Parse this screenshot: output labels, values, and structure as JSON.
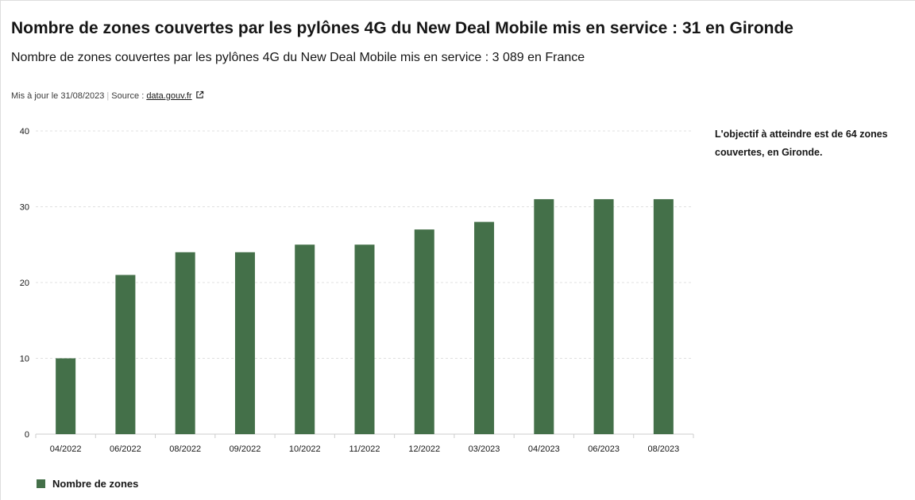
{
  "header": {
    "title": "Nombre de zones couvertes par les pylônes 4G du New Deal Mobile mis en service : 31 en Gironde",
    "subtitle": "Nombre de zones couvertes par les pylônes 4G du New Deal Mobile mis en service : 3 089 en France"
  },
  "meta": {
    "updated": "Mis à jour le 31/08/2023",
    "source_label": "Source :",
    "source_link": "data.gouv.fr"
  },
  "note": "L'objectif à atteindre est de 64 zones couvertes, en Gironde.",
  "colors": {
    "bar": "#447049",
    "grid": "#e0e0e0",
    "axis": "#cccccc",
    "text": "#161616"
  },
  "chart_data": {
    "type": "bar",
    "categories": [
      "04/2022",
      "06/2022",
      "08/2022",
      "09/2022",
      "10/2022",
      "11/2022",
      "12/2022",
      "03/2023",
      "04/2023",
      "06/2023",
      "08/2023"
    ],
    "series": [
      {
        "name": "Nombre de zones",
        "values": [
          10,
          21,
          24,
          24,
          25,
          25,
          27,
          28,
          31,
          31,
          31
        ]
      }
    ],
    "ylim": [
      0,
      40
    ],
    "yticks": [
      0,
      10,
      20,
      30,
      40
    ],
    "grid": true,
    "legend": "bottom-left"
  }
}
